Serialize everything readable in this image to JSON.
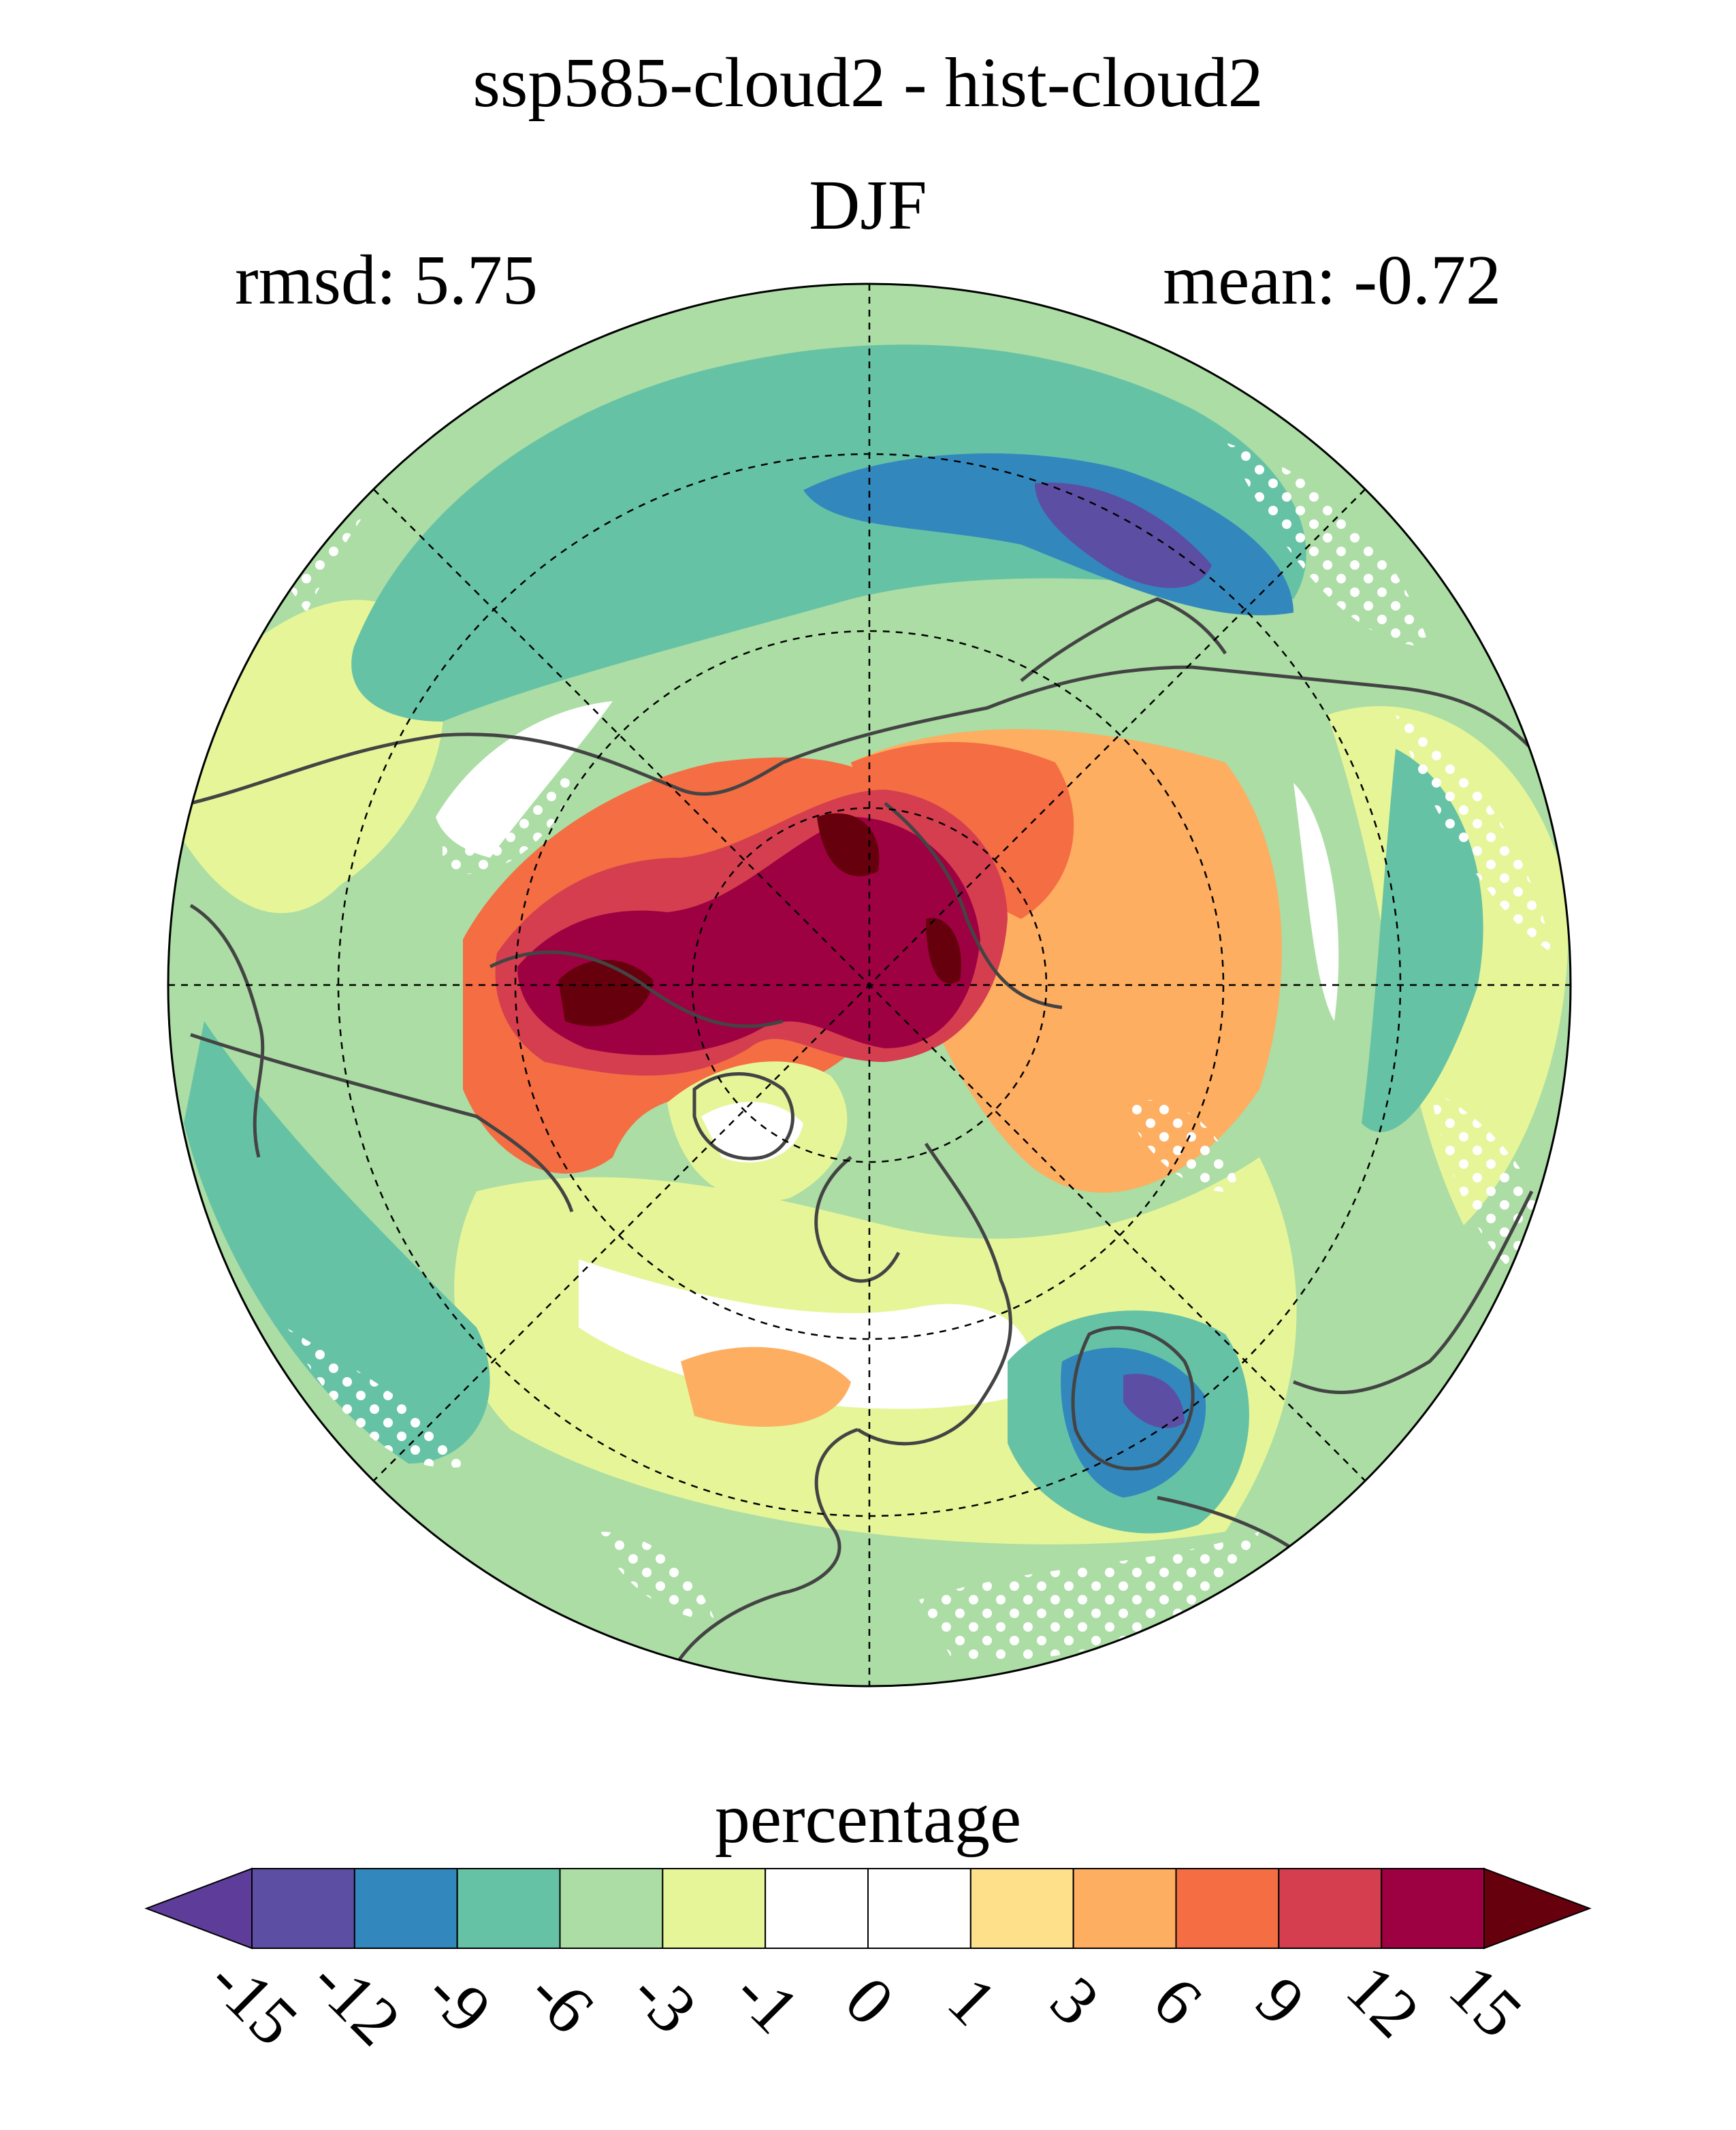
{
  "chart_data": {
    "type": "heatmap",
    "title": "ssp585-cloud2 - hist-cloud2",
    "subtitle": "DJF",
    "annotations": {
      "rmsd": "rmsd: 5.75",
      "mean": "mean: -0.72"
    },
    "projection": "north polar stereographic",
    "stippling": true,
    "colorbar": {
      "label": "percentage",
      "ticks": [
        "-15",
        "-12",
        "-9",
        "-6",
        "-3",
        "-1",
        "0",
        "1",
        "3",
        "6",
        "9",
        "12",
        "15"
      ],
      "colors": [
        "#5e3c99",
        "#5c4fa3",
        "#3288bd",
        "#66c2a5",
        "#abdda4",
        "#e6f598",
        "#ffffff",
        "#ffffff",
        "#fee08b",
        "#fdae61",
        "#f46d43",
        "#d53e4f",
        "#9e0142",
        "#67000d"
      ],
      "extend": "both"
    },
    "colors": {
      "coast": "#444444",
      "stipple": "#ffffff",
      "grid": "#000000"
    }
  }
}
